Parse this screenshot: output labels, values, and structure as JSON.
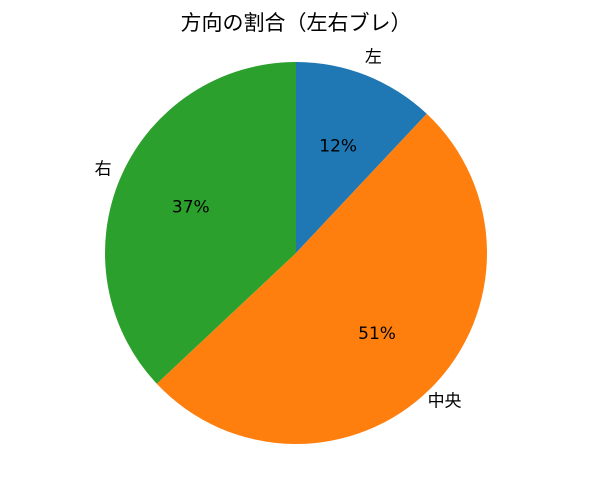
{
  "chart_data": {
    "type": "pie",
    "title": "方向の割合（左右ブレ）",
    "categories": [
      "左",
      "中央",
      "右"
    ],
    "values": [
      12,
      51,
      37
    ],
    "value_labels": [
      "12%",
      "51%",
      "37%"
    ],
    "colors": [
      "#1f77b4",
      "#ff7f0e",
      "#2ca02c"
    ]
  }
}
